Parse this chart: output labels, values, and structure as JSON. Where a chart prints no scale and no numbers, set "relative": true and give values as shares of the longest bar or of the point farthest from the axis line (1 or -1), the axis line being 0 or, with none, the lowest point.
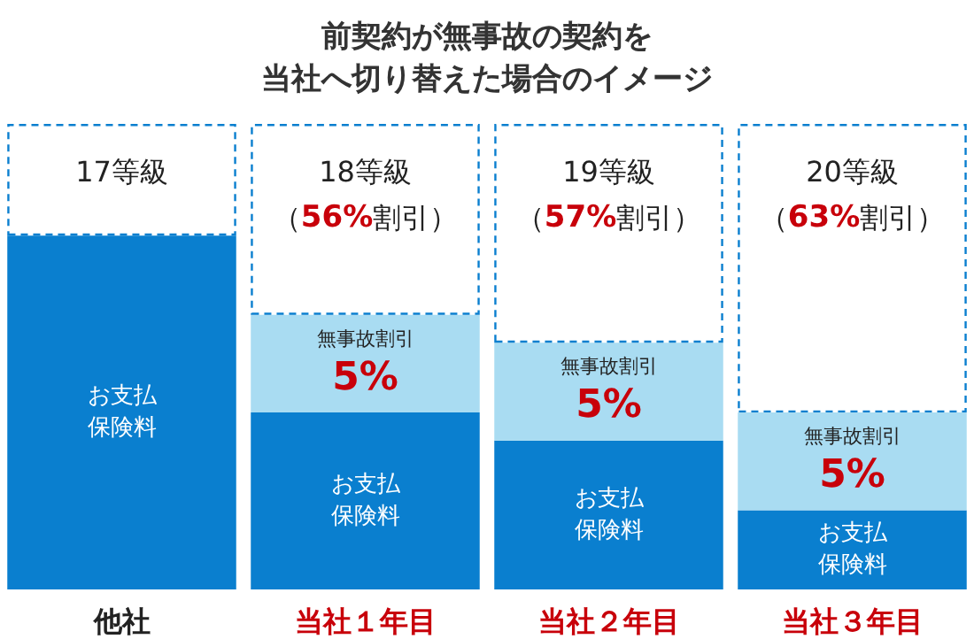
{
  "chart_data": {
    "type": "bar",
    "stacked": true,
    "relative": true,
    "title": "前契約が無事故の契約を当社へ切り替えた場合のイメージ",
    "categories": [
      "他社",
      "当社１年目",
      "当社２年目",
      "当社３年目"
    ],
    "series": [
      {
        "name": "お支払保険料",
        "color": "#0a7fcf",
        "values": [
          0.76,
          0.38,
          0.32,
          0.17
        ]
      },
      {
        "name": "無事故割引5%",
        "color": "#a9dcf2",
        "values": [
          0,
          0.21,
          0.21,
          0.21
        ]
      },
      {
        "color": "#ffffff",
        "values": [
          0.24,
          0.41,
          0.47,
          0.62
        ]
      }
    ],
    "annotations": [
      "17等級",
      "18等級（56%割引）",
      "19等級（57%割引）",
      "20等級（63%割引）"
    ]
  }
}
